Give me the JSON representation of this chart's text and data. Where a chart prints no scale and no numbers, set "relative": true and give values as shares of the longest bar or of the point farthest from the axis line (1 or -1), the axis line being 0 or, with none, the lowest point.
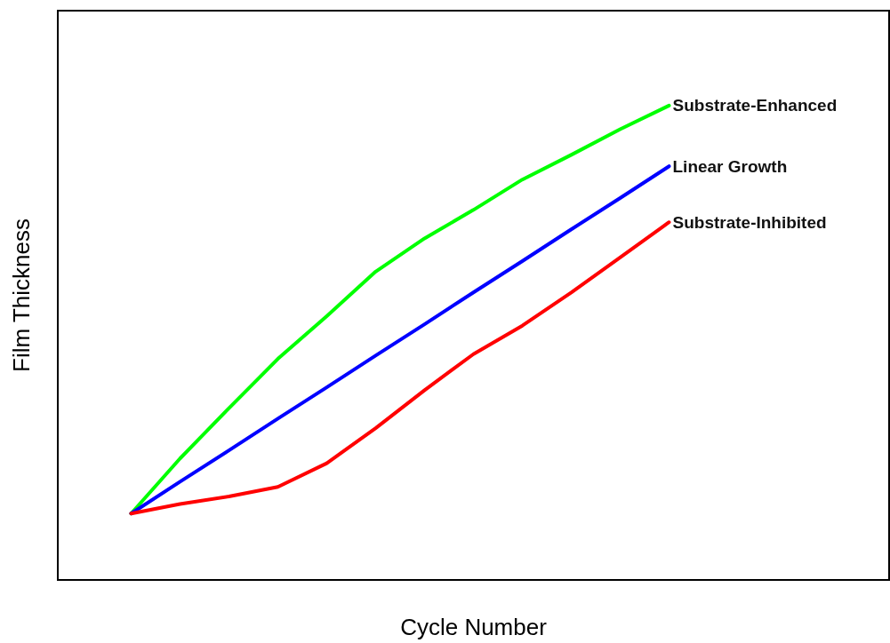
{
  "chart_data": {
    "type": "line",
    "relative": true,
    "xlabel": "Cycle Number",
    "ylabel": "Film Thickness",
    "grid": false,
    "legend": false,
    "marker": "none",
    "line_style": "solid",
    "tick_labels": false,
    "categories": [
      null,
      null,
      null,
      null,
      null,
      null,
      null,
      null,
      null,
      null,
      null,
      null,
      null,
      null,
      null,
      null,
      null
    ],
    "series": [
      {
        "name": "Substrate-Enhanced",
        "color": "#00ff00",
        "values": [
          null,
          0.14,
          0.256,
          0.362,
          0.466,
          0.556,
          0.65,
          0.72,
          0.78,
          0.844,
          0.896,
          0.95,
          1,
          null,
          null,
          null,
          null
        ]
      },
      {
        "name": "Linear Growth",
        "color": "#0000ff",
        "values": [
          null,
          0.14,
          0.207,
          0.273,
          0.34,
          0.406,
          0.473,
          0.539,
          0.606,
          0.672,
          0.739,
          0.805,
          0.872,
          null,
          null,
          null,
          null
        ]
      },
      {
        "name": "Substrate-Inhibited",
        "color": "#ff0000",
        "values": [
          null,
          0.14,
          0.16,
          0.176,
          0.196,
          0.246,
          0.32,
          0.4,
          0.476,
          0.536,
          0.606,
          0.68,
          0.754,
          null,
          null,
          null,
          null
        ]
      }
    ]
  }
}
